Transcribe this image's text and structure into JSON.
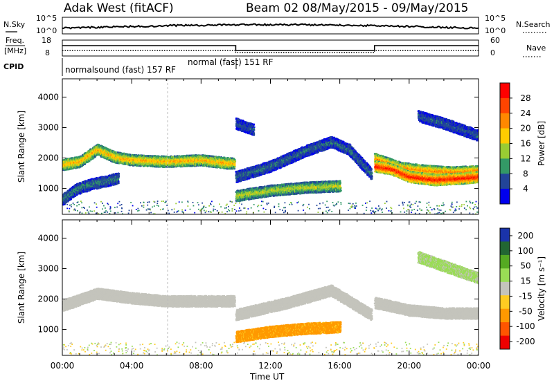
{
  "header": {
    "station": "Adak West (fitACF)",
    "beam_date": "Beam 02 08/May/2015 - 09/May/2015"
  },
  "summary_panel": {
    "nsky_label": "N.Sky",
    "nsearch_label": "N.Search",
    "freq_label_1": "Freq.",
    "freq_label_2": "[MHz]",
    "nave_label": "Nave",
    "cpid_label": "CPID",
    "left_ticks_top": [
      "10^5",
      "10^0"
    ],
    "right_ticks_top": [
      "10^5",
      "10^0"
    ],
    "left_ticks_freq": [
      "18",
      "8"
    ],
    "right_ticks_nave": [
      "60",
      "0"
    ],
    "cpid_entries": [
      "normalsound (fast) 157 RF",
      "normal (fast) 151 RF"
    ]
  },
  "axes": {
    "ylabel": "Slant Range [km]",
    "xlabel": "Time UT",
    "x_ticks": [
      "00:00",
      "04:00",
      "08:00",
      "12:00",
      "16:00",
      "20:00",
      "00:00"
    ],
    "y_ticks": [
      "4000",
      "3000",
      "2000",
      "1000"
    ]
  },
  "colorbars": {
    "power": {
      "label": "Power [dB]",
      "ticks": [
        "28",
        "24",
        "20",
        "16",
        "12",
        "8",
        "4"
      ],
      "colors": [
        "#ff0000",
        "#ff4400",
        "#ff8800",
        "#ffcc00",
        "#99cc33",
        "#339966",
        "#224499",
        "#0000ee"
      ]
    },
    "velocity": {
      "label": "Velocity [m s⁻¹]",
      "ticks": [
        "200",
        "100",
        "50",
        "15",
        "-15",
        "-50",
        "-100",
        "-200"
      ],
      "colors": [
        "#1a33aa",
        "#226633",
        "#55aa22",
        "#99dd55",
        "#c4c4bc",
        "#ffcc22",
        "#ff9900",
        "#ff5500",
        "#ee0000"
      ]
    }
  },
  "chart_data": [
    {
      "type": "heatmap",
      "title": "Power",
      "x_unit": "hours UT",
      "y_unit": "km",
      "xlim": [
        0,
        24
      ],
      "ylim": [
        150,
        4600
      ],
      "colorbar_range": [
        0,
        30
      ],
      "features": [
        {
          "t": [
            0.0,
            1.0,
            2.0,
            3.0,
            4.0,
            6.0,
            8.0,
            9.5,
            9.9
          ],
          "range": [
            1800,
            1900,
            2300,
            2050,
            1950,
            1900,
            1950,
            1850,
            1850
          ],
          "power": 18
        },
        {
          "t": [
            0.0,
            0.8,
            1.6,
            2.4,
            3.2
          ],
          "range": [
            650,
            1000,
            1150,
            1250,
            1350
          ],
          "power": 8
        },
        {
          "t": [
            10.0,
            12.0,
            14.0,
            16.0
          ],
          "range": [
            780,
            950,
            1050,
            1100
          ],
          "power": 14
        },
        {
          "t": [
            10.0,
            12.0,
            14.0,
            15.5,
            16.5,
            17.8
          ],
          "range": [
            1400,
            1750,
            2250,
            2550,
            2300,
            1500
          ],
          "power": 7
        },
        {
          "t": [
            10.0,
            11.0
          ],
          "range": [
            3150,
            2950
          ],
          "power": 6
        },
        {
          "t": [
            18.0,
            19.5,
            21.0,
            22.5,
            24.0
          ],
          "range": [
            2000,
            1700,
            1600,
            1550,
            1600
          ],
          "power": 20
        },
        {
          "t": [
            18.0,
            19.0,
            20.0,
            21.5,
            23.0,
            24.0
          ],
          "range": [
            1750,
            1650,
            1400,
            1300,
            1350,
            1400
          ],
          "power": 26
        },
        {
          "t": [
            20.5,
            22.0,
            24.0
          ],
          "range": [
            3400,
            3150,
            2750
          ],
          "power": 6
        }
      ]
    },
    {
      "type": "heatmap",
      "title": "Velocity",
      "x_unit": "hours UT",
      "y_unit": "km",
      "xlim": [
        0,
        24
      ],
      "ylim": [
        150,
        4600
      ],
      "colorbar_range": [
        -200,
        200
      ],
      "features": [
        {
          "t": [
            0.0,
            2.0,
            4.0,
            6.0,
            8.0,
            9.9
          ],
          "range": [
            1800,
            2200,
            2050,
            1950,
            1950,
            1950
          ],
          "velocity": 0
        },
        {
          "t": [
            10.0,
            12.0,
            14.0,
            16.0
          ],
          "range": [
            780,
            950,
            1050,
            1100
          ],
          "velocity": -60
        },
        {
          "t": [
            10.0,
            13.0,
            15.5,
            17.8
          ],
          "range": [
            1500,
            1900,
            2300,
            1500
          ],
          "velocity": 0
        },
        {
          "t": [
            18.0,
            20.0,
            22.0,
            24.0
          ],
          "range": [
            1900,
            1650,
            1550,
            1550
          ],
          "velocity": 0
        },
        {
          "t": [
            20.5,
            22.0,
            24.0
          ],
          "range": [
            3400,
            3100,
            2700
          ],
          "velocity": 20
        }
      ]
    }
  ]
}
